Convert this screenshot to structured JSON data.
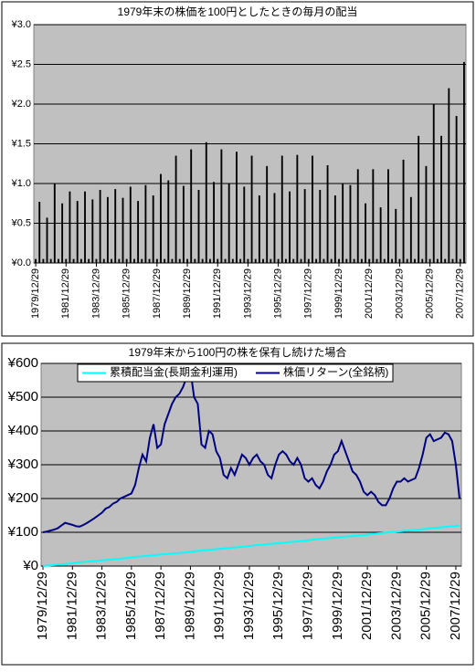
{
  "chart_data": [
    {
      "type": "bar",
      "title": "1979年末の株価を100円としたときの毎月の配当",
      "color": "#000000",
      "background": "#c0c0c0",
      "grid": true,
      "ylim": [
        0,
        3
      ],
      "yticks": [
        {
          "value": 0,
          "label": "¥0.0"
        },
        {
          "value": 0.5,
          "label": "¥0.5"
        },
        {
          "value": 1,
          "label": "¥1.0"
        },
        {
          "value": 1.5,
          "label": "¥1.5"
        },
        {
          "value": 2,
          "label": "¥2.0"
        },
        {
          "value": 2.5,
          "label": "¥2.5"
        },
        {
          "value": 3,
          "label": "¥3.0"
        }
      ],
      "categories": [
        "1979/12/29",
        null,
        null,
        null,
        null,
        null,
        null,
        null,
        "1981/12/29",
        null,
        null,
        null,
        null,
        null,
        null,
        null,
        "1983/12/29",
        null,
        null,
        null,
        null,
        null,
        null,
        null,
        "1985/12/29",
        null,
        null,
        null,
        null,
        null,
        null,
        null,
        "1987/12/29",
        null,
        null,
        null,
        null,
        null,
        null,
        null,
        "1989/12/29",
        null,
        null,
        null,
        null,
        null,
        null,
        null,
        "1991/12/29",
        null,
        null,
        null,
        null,
        null,
        null,
        null,
        "1993/12/29",
        null,
        null,
        null,
        null,
        null,
        null,
        null,
        "1995/12/29",
        null,
        null,
        null,
        null,
        null,
        null,
        null,
        "1997/12/29",
        null,
        null,
        null,
        null,
        null,
        null,
        null,
        "1999/12/29",
        null,
        null,
        null,
        null,
        null,
        null,
        null,
        "2001/12/29",
        null,
        null,
        null,
        null,
        null,
        null,
        null,
        "2003/12/29",
        null,
        null,
        null,
        null,
        null,
        null,
        null,
        "2005/12/29",
        null,
        null,
        null,
        null,
        null,
        null,
        null,
        "2007/12/29",
        null
      ],
      "values": [
        0.05,
        0.77,
        0.05,
        0.57,
        0.05,
        1.0,
        0.05,
        0.75,
        0.05,
        0.9,
        0.05,
        0.78,
        0.05,
        0.9,
        0.05,
        0.8,
        0.05,
        0.92,
        0.05,
        0.83,
        0.05,
        0.93,
        0.05,
        0.82,
        0.05,
        0.96,
        0.05,
        0.78,
        0.05,
        0.98,
        0.05,
        0.85,
        0.05,
        1.12,
        0.05,
        1.04,
        0.05,
        1.35,
        0.05,
        0.97,
        0.05,
        1.43,
        0.05,
        0.92,
        0.05,
        1.52,
        0.05,
        1.02,
        0.05,
        1.43,
        0.05,
        1.0,
        0.05,
        1.4,
        0.05,
        0.96,
        0.05,
        1.35,
        0.05,
        0.85,
        0.05,
        1.22,
        0.05,
        0.88,
        0.05,
        1.35,
        0.05,
        0.9,
        0.05,
        1.36,
        0.05,
        0.93,
        0.05,
        1.35,
        0.05,
        0.92,
        0.05,
        1.23,
        0.05,
        0.85,
        0.05,
        1.0,
        0.05,
        0.98,
        0.05,
        1.18,
        0.05,
        0.75,
        0.05,
        1.18,
        0.05,
        0.7,
        0.05,
        1.18,
        0.05,
        0.68,
        0.05,
        1.3,
        0.05,
        0.83,
        0.05,
        1.6,
        0.05,
        1.22,
        0.05,
        2.0,
        0.05,
        1.6,
        0.05,
        2.2,
        0.05,
        1.85,
        0.05,
        2.53
      ]
    },
    {
      "type": "line",
      "title": "1979年末から100円の株を保有し続けた場合",
      "background": "#c0c0c0",
      "grid": true,
      "legend": "top",
      "ylim": [
        0,
        600
      ],
      "yticks": [
        {
          "value": 0,
          "label": "¥0"
        },
        {
          "value": 100,
          "label": "¥100"
        },
        {
          "value": 200,
          "label": "¥200"
        },
        {
          "value": 300,
          "label": "¥300"
        },
        {
          "value": 400,
          "label": "¥400"
        },
        {
          "value": 500,
          "label": "¥500"
        },
        {
          "value": 600,
          "label": "¥600"
        }
      ],
      "categories": [
        "1979/12/29",
        null,
        null,
        null,
        null,
        null,
        null,
        null,
        "1981/12/29",
        null,
        null,
        null,
        null,
        null,
        null,
        null,
        "1983/12/29",
        null,
        null,
        null,
        null,
        null,
        null,
        null,
        "1985/12/29",
        null,
        null,
        null,
        null,
        null,
        null,
        null,
        "1987/12/29",
        null,
        null,
        null,
        null,
        null,
        null,
        null,
        "1989/12/29",
        null,
        null,
        null,
        null,
        null,
        null,
        null,
        "1991/12/29",
        null,
        null,
        null,
        null,
        null,
        null,
        null,
        "1993/12/29",
        null,
        null,
        null,
        null,
        null,
        null,
        null,
        "1995/12/29",
        null,
        null,
        null,
        null,
        null,
        null,
        null,
        "1997/12/29",
        null,
        null,
        null,
        null,
        null,
        null,
        null,
        "1999/12/29",
        null,
        null,
        null,
        null,
        null,
        null,
        null,
        "2001/12/29",
        null,
        null,
        null,
        null,
        null,
        null,
        null,
        "2003/12/29",
        null,
        null,
        null,
        null,
        null,
        null,
        null,
        "2005/12/29",
        null,
        null,
        null,
        null,
        null,
        null,
        null,
        "2007/12/29",
        null
      ],
      "series": [
        {
          "name": "累積配当金(長期金利運用)",
          "color": "#00ffff",
          "values": [
            0,
            1,
            2,
            3,
            4,
            5,
            6,
            7,
            8,
            10,
            11,
            12,
            13,
            14,
            15,
            16,
            17,
            18,
            19,
            20,
            21,
            22,
            23,
            24,
            25,
            27,
            28,
            29,
            30,
            31,
            32,
            33,
            34,
            35,
            36,
            37,
            38,
            39,
            40,
            41,
            42,
            44,
            45,
            46,
            47,
            48,
            49,
            50,
            51,
            52,
            53,
            54,
            55,
            56,
            57,
            58,
            59,
            61,
            62,
            63,
            64,
            65,
            66,
            67,
            68,
            69,
            70,
            71,
            72,
            73,
            74,
            75,
            76,
            78,
            79,
            80,
            81,
            82,
            83,
            84,
            85,
            86,
            87,
            88,
            89,
            90,
            91,
            92,
            93,
            95,
            96,
            97,
            98,
            99,
            100,
            101,
            102,
            103,
            104,
            105,
            106,
            107,
            108,
            109,
            110,
            112,
            113,
            114,
            115,
            116,
            117,
            118,
            119,
            120
          ]
        },
        {
          "name": "株価リターン(全銘柄)",
          "color": "#000080",
          "values": [
            100,
            102,
            105,
            108,
            112,
            120,
            128,
            125,
            122,
            118,
            117,
            122,
            128,
            135,
            142,
            150,
            158,
            170,
            175,
            185,
            190,
            200,
            205,
            210,
            215,
            240,
            290,
            330,
            310,
            380,
            420,
            350,
            360,
            420,
            450,
            480,
            500,
            510,
            530,
            560,
            580,
            500,
            480,
            360,
            350,
            400,
            390,
            340,
            320,
            270,
            260,
            290,
            270,
            300,
            330,
            320,
            300,
            320,
            330,
            310,
            300,
            270,
            260,
            300,
            330,
            340,
            330,
            310,
            300,
            320,
            300,
            260,
            250,
            260,
            240,
            230,
            250,
            280,
            300,
            330,
            340,
            370,
            340,
            310,
            280,
            270,
            250,
            220,
            210,
            220,
            210,
            190,
            180,
            180,
            200,
            230,
            250,
            250,
            260,
            250,
            255,
            260,
            290,
            330,
            380,
            390,
            370,
            375,
            380,
            395,
            390,
            370,
            300,
            200
          ]
        }
      ]
    }
  ]
}
